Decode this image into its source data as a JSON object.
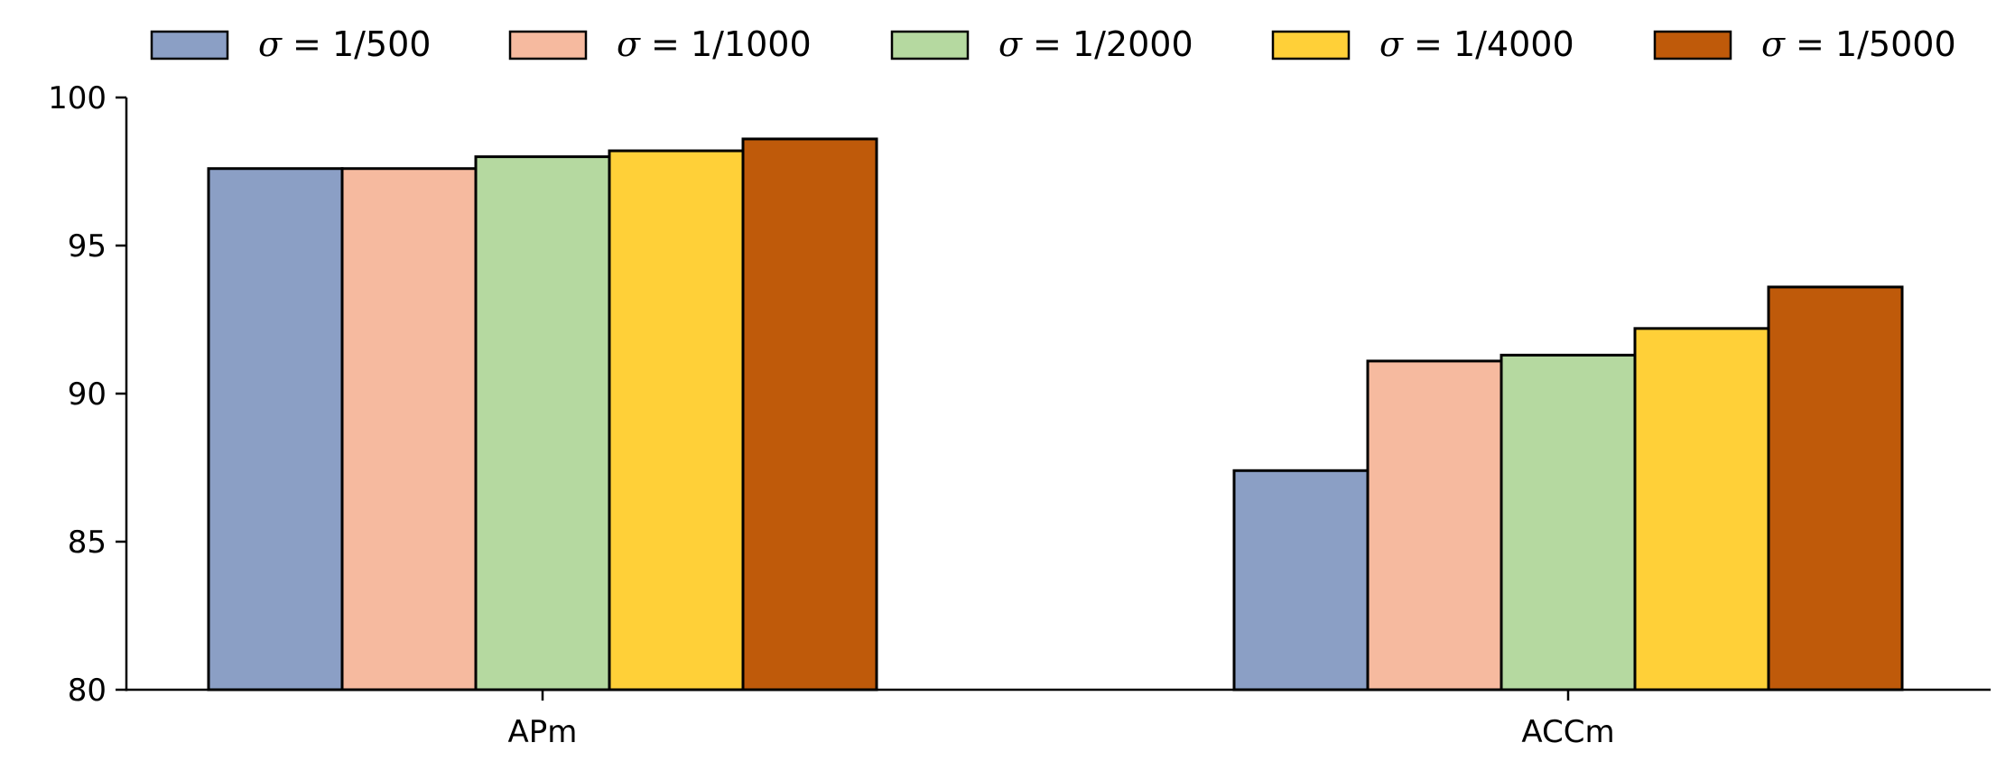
{
  "chart_data": {
    "type": "bar",
    "categories": [
      "APm",
      "ACCm"
    ],
    "series": [
      {
        "name": "σ = 1/500",
        "symbol": "σ",
        "rhs": "= 1/500",
        "color": "#8b9fc5",
        "values": [
          97.6,
          87.4
        ]
      },
      {
        "name": "σ = 1/1000",
        "symbol": "σ",
        "rhs": "= 1/1000",
        "color": "#f6ba9f",
        "values": [
          97.6,
          91.1
        ]
      },
      {
        "name": "σ = 1/2000",
        "symbol": "σ",
        "rhs": "= 1/2000",
        "color": "#b5d9a0",
        "values": [
          98.0,
          91.3
        ]
      },
      {
        "name": "σ = 1/4000",
        "symbol": "σ",
        "rhs": "= 1/4000",
        "color": "#ffd038",
        "values": [
          98.2,
          92.2
        ]
      },
      {
        "name": "σ = 1/5000",
        "symbol": "σ",
        "rhs": "= 1/5000",
        "color": "#bf5a0a",
        "values": [
          98.6,
          93.6
        ]
      }
    ],
    "yticks": [
      "80",
      "85",
      "90",
      "95",
      "100"
    ],
    "ylim": [
      80,
      100
    ],
    "title": "",
    "xlabel": "",
    "ylabel": "",
    "legend_position": "top",
    "grid": false
  }
}
